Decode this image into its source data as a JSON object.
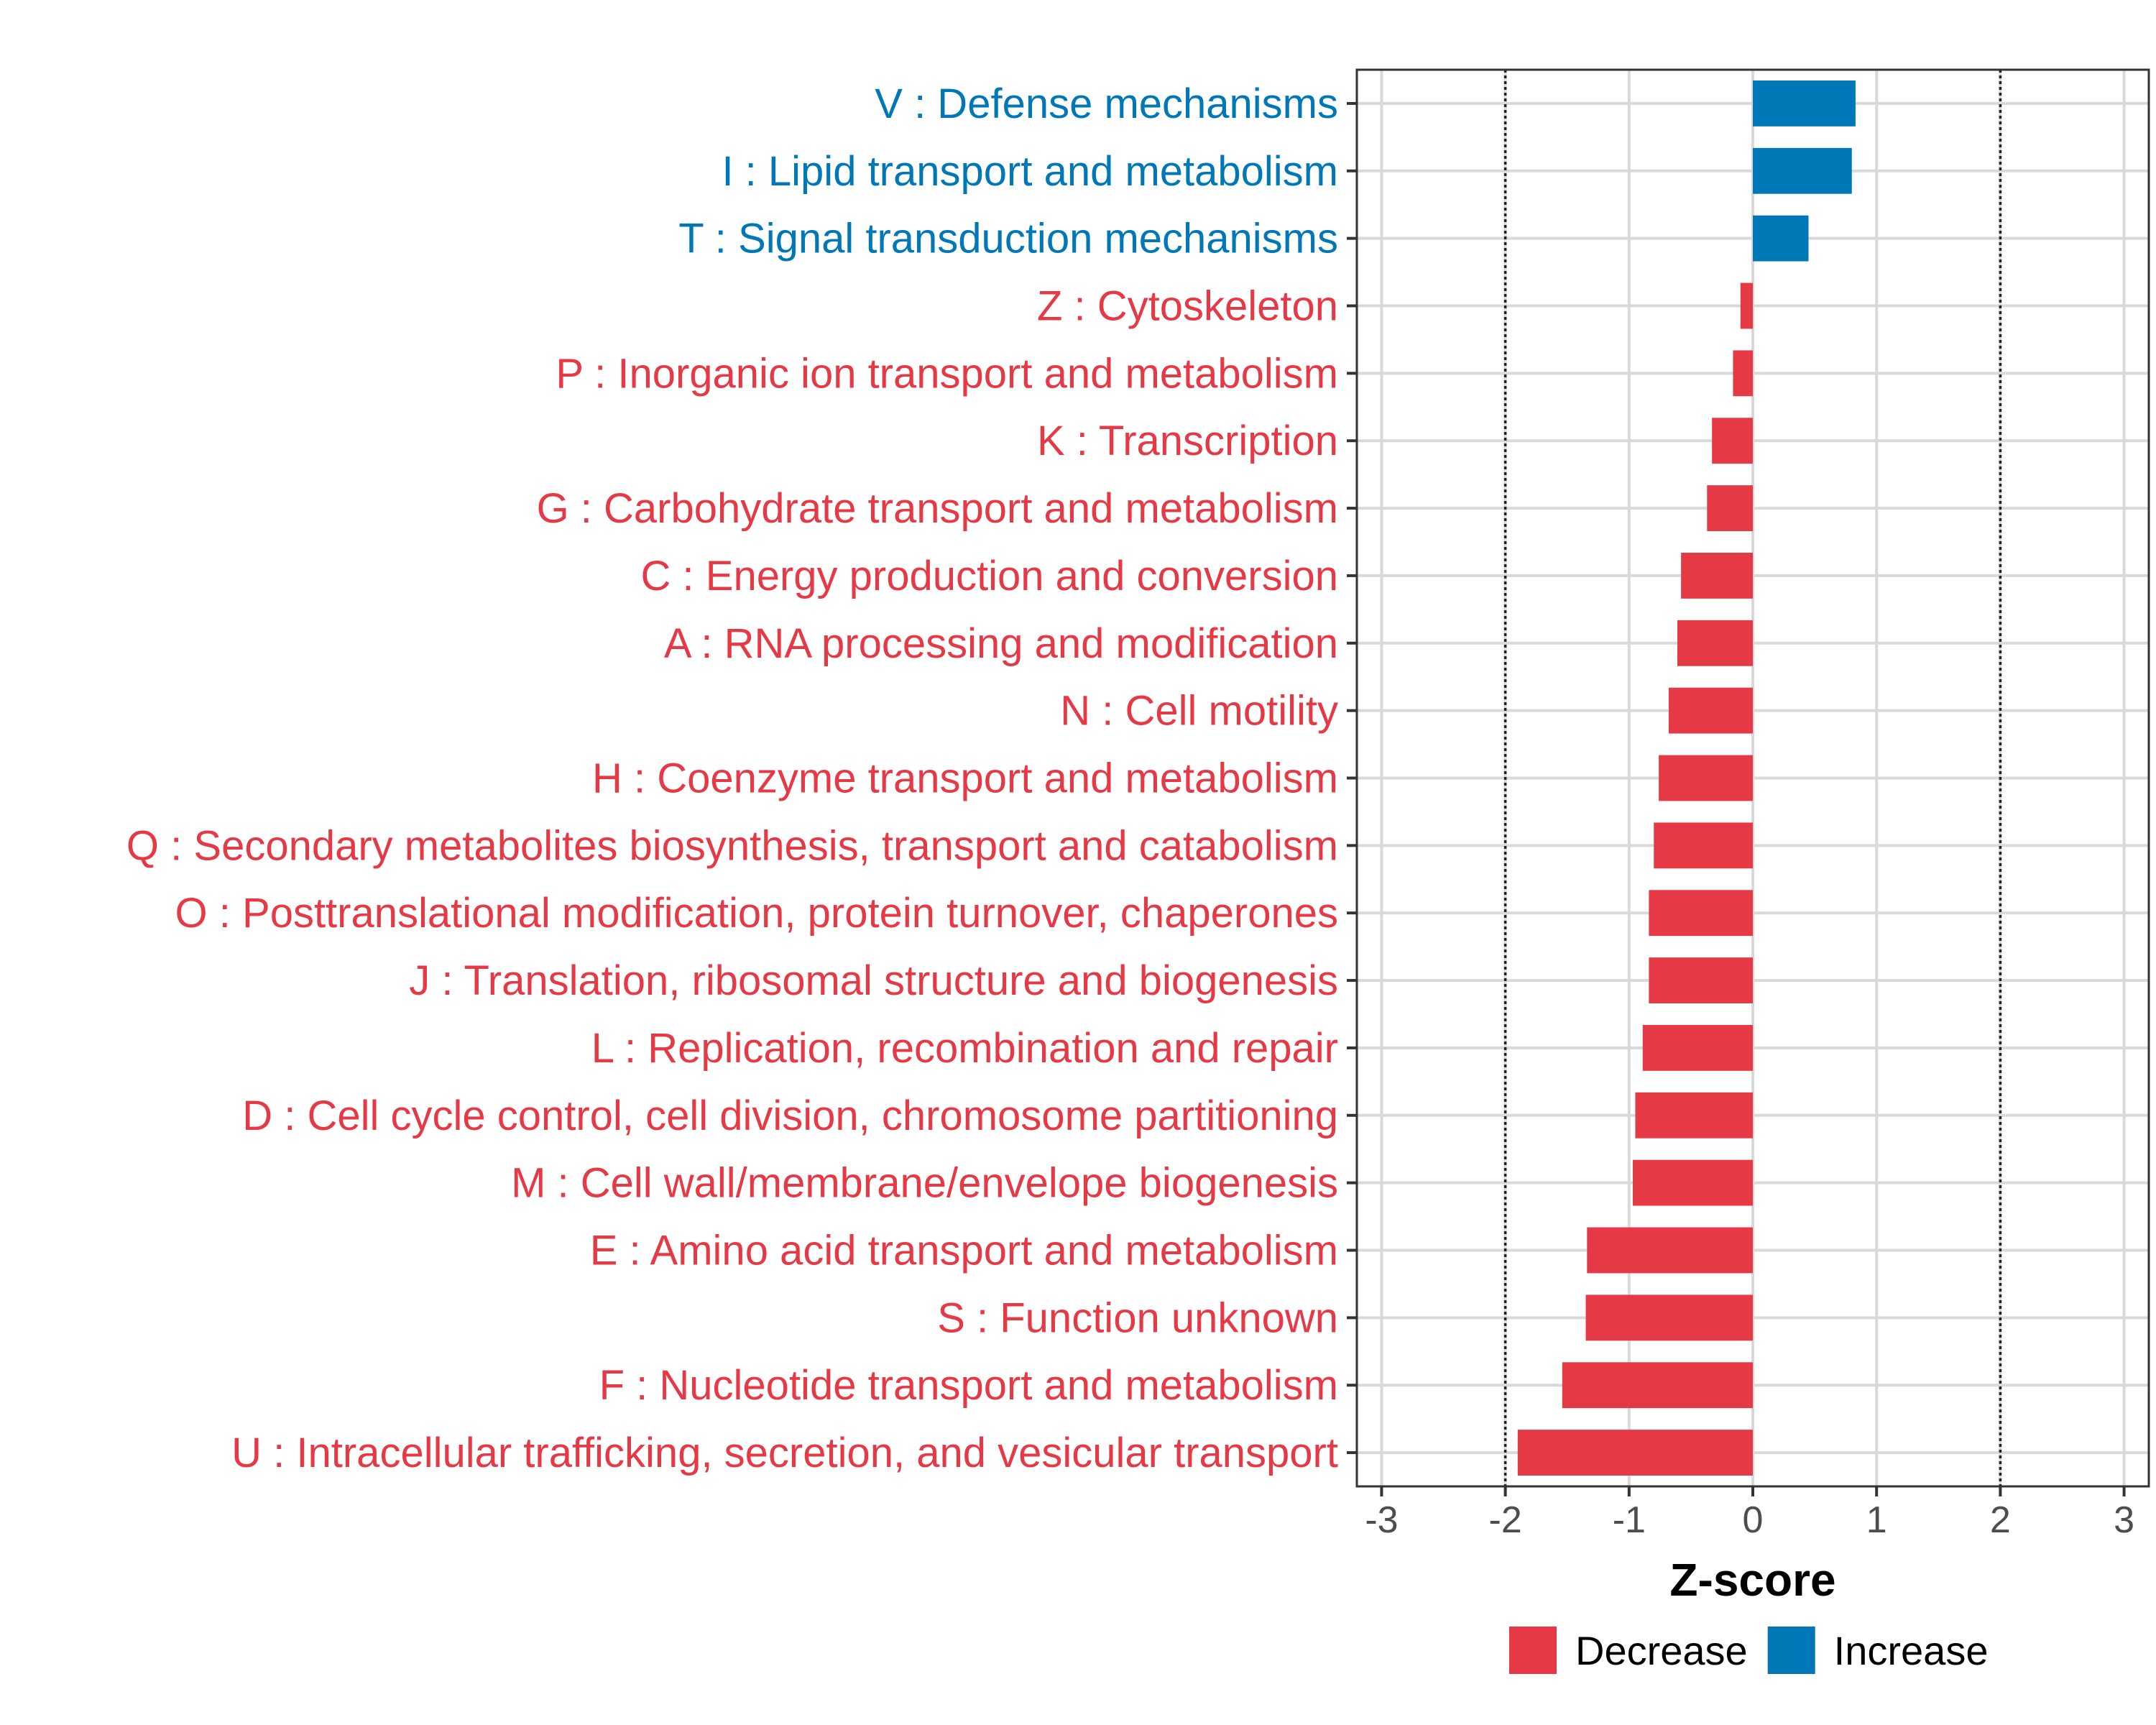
{
  "chart_data": {
    "type": "bar",
    "orientation": "horizontal",
    "xlabel": "Z-score",
    "xlim": [
      -3.2,
      3.2
    ],
    "xticks": [
      -3,
      -2,
      -1,
      0,
      1,
      2,
      3
    ],
    "threshold_lines": [
      -2,
      2
    ],
    "grid": true,
    "categories": [
      "V : Defense mechanisms",
      "I : Lipid transport and metabolism",
      "T : Signal transduction mechanisms",
      "Z : Cytoskeleton",
      "P : Inorganic ion transport and metabolism",
      "K : Transcription",
      "G : Carbohydrate transport and metabolism",
      "C : Energy production and conversion",
      "A : RNA processing and modification",
      "N : Cell motility",
      "H : Coenzyme transport and metabolism",
      "Q : Secondary metabolites biosynthesis, transport and catabolism",
      "O : Posttranslational modification, protein turnover, chaperones",
      "J : Translation, ribosomal structure and biogenesis",
      "L : Replication, recombination and repair",
      "D : Cell cycle control, cell division, chromosome partitioning",
      "M : Cell wall/membrane/envelope biogenesis",
      "E : Amino acid transport and metabolism",
      "S : Function unknown",
      "F : Nucleotide transport and metabolism",
      "U : Intracellular trafficking, secretion, and vesicular transport"
    ],
    "values": [
      0.83,
      0.8,
      0.45,
      -0.1,
      -0.16,
      -0.33,
      -0.37,
      -0.58,
      -0.61,
      -0.68,
      -0.76,
      -0.8,
      -0.84,
      -0.84,
      -0.89,
      -0.95,
      -0.97,
      -1.34,
      -1.35,
      -1.54,
      -1.9
    ],
    "groups": [
      "Increase",
      "Increase",
      "Increase",
      "Decrease",
      "Decrease",
      "Decrease",
      "Decrease",
      "Decrease",
      "Decrease",
      "Decrease",
      "Decrease",
      "Decrease",
      "Decrease",
      "Decrease",
      "Decrease",
      "Decrease",
      "Decrease",
      "Decrease",
      "Decrease",
      "Decrease",
      "Decrease"
    ],
    "legend": [
      {
        "label": "Decrease",
        "color": "#E63946"
      },
      {
        "label": "Increase",
        "color": "#0077B6"
      }
    ],
    "legend_position": "bottom"
  }
}
